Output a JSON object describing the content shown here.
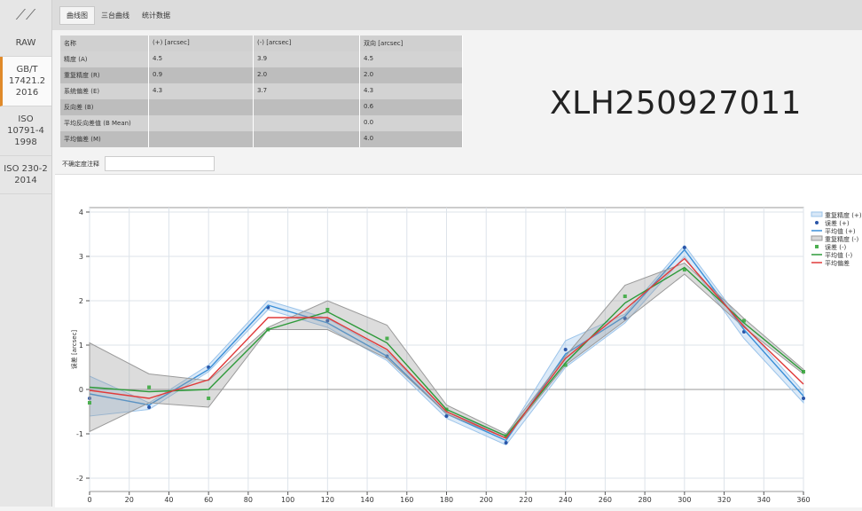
{
  "sidebar": {
    "items": [
      "RAW",
      "GB/T\n17421.2\n2016",
      "ISO\n10791-4\n1998",
      "ISO 230-2\n2014"
    ]
  },
  "tabs": [
    "曲线图",
    "三台曲线",
    "统计数据"
  ],
  "table": {
    "header": [
      "名称",
      "(+) [arcsec]",
      "(-) [arcsec]",
      "双向 [arcsec]"
    ],
    "rows": [
      [
        "精度 (A)",
        "4.5",
        "3.9",
        "4.5"
      ],
      [
        "重复精度 (R)",
        "0.9",
        "2.0",
        "2.0"
      ],
      [
        "系统偏差 (E)",
        "4.3",
        "3.7",
        "4.3"
      ],
      [
        "反向差 (B)",
        null,
        null,
        "0.6"
      ],
      [
        "平均反向差值 (B Mean)",
        null,
        null,
        "0.0"
      ],
      [
        "平均偏差 (M)",
        null,
        null,
        "4.0"
      ]
    ]
  },
  "note_label": "不确定度注释",
  "serial": "XLH250927011",
  "chart_data": {
    "type": "line",
    "y_label": "误差 [arcsec]",
    "x": [
      0,
      30,
      60,
      90,
      120,
      150,
      180,
      210,
      240,
      270,
      300,
      330,
      360
    ],
    "xlim": [
      0,
      360
    ],
    "xticks": [
      0,
      20,
      40,
      60,
      80,
      100,
      120,
      140,
      160,
      180,
      200,
      220,
      240,
      260,
      280,
      300,
      320,
      340,
      360
    ],
    "ylim": [
      -2.3,
      4.1
    ],
    "yticks": [
      -2,
      -1,
      0,
      1,
      2,
      3,
      4
    ],
    "grid": true,
    "series": [
      {
        "name": "重复精度 (+)",
        "kind": "band",
        "color": "#9cc4ea",
        "upper": [
          0.3,
          -0.3,
          0.55,
          2.0,
          1.6,
          0.85,
          -0.5,
          -1.05,
          1.1,
          1.7,
          3.25,
          1.45,
          -0.05
        ],
        "lower": [
          -0.6,
          -0.45,
          0.4,
          1.8,
          1.4,
          0.65,
          -0.65,
          -1.25,
          0.5,
          1.5,
          3.0,
          1.15,
          -0.3
        ]
      },
      {
        "name": "误差 (+)",
        "kind": "points",
        "marker": "circle",
        "color": "#2a55a8",
        "values": [
          -0.2,
          -0.4,
          0.5,
          1.85,
          1.55,
          0.75,
          -0.6,
          -1.2,
          0.9,
          1.6,
          3.2,
          1.3,
          -0.2
        ]
      },
      {
        "name": "平均值 (+)",
        "kind": "line",
        "color": "#3a8fd8",
        "values": [
          -0.1,
          -0.35,
          0.45,
          1.9,
          1.5,
          0.75,
          -0.55,
          -1.15,
          0.8,
          1.65,
          3.15,
          1.35,
          -0.15
        ]
      },
      {
        "name": "重复精度 (-)",
        "kind": "band",
        "color": "#9a9a9a",
        "upper": [
          1.05,
          0.35,
          0.2,
          1.4,
          2.0,
          1.45,
          -0.35,
          -1.0,
          0.75,
          2.35,
          2.85,
          1.6,
          0.45
        ],
        "lower": [
          -0.95,
          -0.3,
          -0.4,
          1.35,
          1.35,
          0.7,
          -0.55,
          -1.1,
          0.55,
          1.55,
          2.6,
          1.4,
          0.35
        ]
      },
      {
        "name": "误差 (-)",
        "kind": "points",
        "marker": "square",
        "color": "#4caf50",
        "values": [
          -0.3,
          0.05,
          -0.2,
          1.35,
          1.8,
          1.15,
          -0.45,
          -1.05,
          0.55,
          2.1,
          2.7,
          1.55,
          0.4
        ]
      },
      {
        "name": "平均值 (-)",
        "kind": "line",
        "color": "#2e9a3a",
        "values": [
          0.05,
          -0.05,
          0.0,
          1.35,
          1.75,
          1.05,
          -0.45,
          -1.05,
          0.6,
          1.95,
          2.75,
          1.5,
          0.4
        ]
      },
      {
        "name": "平均偏差",
        "kind": "line",
        "color": "#e03a3a",
        "values": [
          -0.02,
          -0.2,
          0.22,
          1.62,
          1.62,
          0.9,
          -0.5,
          -1.1,
          0.7,
          1.8,
          2.95,
          1.42,
          0.12
        ]
      }
    ]
  }
}
